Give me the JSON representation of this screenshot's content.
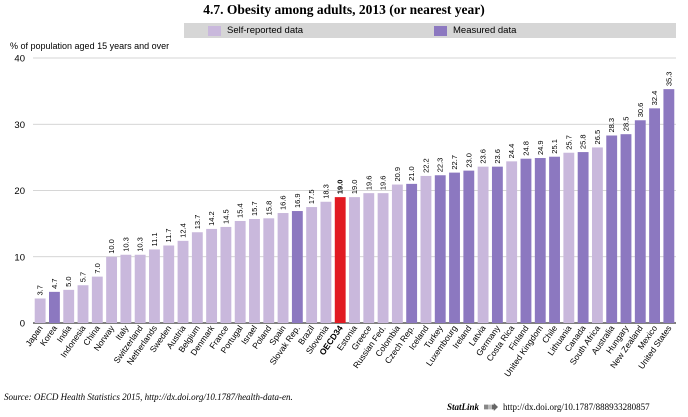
{
  "title": "4.7.  Obesity among adults, 2013 (or nearest year)",
  "y_axis_title": "% of population aged 15 years and over",
  "legend": [
    {
      "label": "Self-reported data",
      "color": "#c9b8dc"
    },
    {
      "label": "Measured data",
      "color": "#8c78c0"
    }
  ],
  "colors": {
    "self_reported": "#c9b8dc",
    "measured": "#8c78c0",
    "oecd": "#e11a22",
    "legend_band": "#d6d6d6"
  },
  "source": "Source:  OECD Health Statistics 2015, http://dx.doi.org/10.1787/health-data-en.",
  "statlink": {
    "brand": "StatLink",
    "url": "http://dx.doi.org/10.1787/888933280857"
  },
  "chart_data": {
    "type": "bar",
    "ylim": [
      0,
      40
    ],
    "yticks": [
      0,
      10,
      20,
      30,
      40
    ],
    "grid": true,
    "categories": [
      "Japan",
      "Korea",
      "India",
      "Indonesia",
      "China",
      "Norway",
      "Italy",
      "Switzerland",
      "Netherlands",
      "Sweden",
      "Austria",
      "Belgium",
      "Denmark",
      "France",
      "Portugal",
      "Israel",
      "Poland",
      "Spain",
      "Slovak Rep.",
      "Brazil",
      "Slovenia",
      "OECD34",
      "Estonia",
      "Greece",
      "Russian Fed.",
      "Colombia",
      "Czech Rep.",
      "Iceland",
      "Turkey",
      "Luxembourg",
      "Ireland",
      "Latvia",
      "Germany",
      "Costa Rica",
      "Finland",
      "United Kingdom",
      "Chile",
      "Lithuania",
      "Canada",
      "South Africa",
      "Australia",
      "Hungary",
      "New Zealand",
      "Mexico",
      "United States"
    ],
    "values": [
      3.7,
      4.7,
      5.0,
      5.7,
      7.0,
      10.0,
      10.3,
      10.3,
      11.1,
      11.7,
      12.4,
      13.7,
      14.2,
      14.5,
      15.4,
      15.7,
      15.8,
      16.6,
      16.9,
      17.5,
      18.3,
      19.0,
      19.0,
      19.6,
      19.6,
      20.9,
      21.0,
      22.2,
      22.3,
      22.7,
      23.0,
      23.6,
      23.6,
      24.4,
      24.8,
      24.9,
      25.1,
      25.7,
      25.8,
      26.5,
      28.3,
      28.5,
      30.6,
      32.4,
      35.3
    ],
    "value_labels": [
      "3.7",
      "4.7",
      "5.0",
      "5.7",
      "7.0",
      "10.0",
      "10.3",
      "10.3",
      "11.1",
      "11.7",
      "12.4",
      "13.7",
      "14.2",
      "14.5",
      "15.4",
      "15.7",
      "15.8",
      "16.6",
      "16.9",
      "17.5",
      "18.3",
      "19.0",
      "19.0",
      "19.6",
      "19.6",
      "20.9",
      "21.0",
      "22.2",
      "22.3",
      "22.7",
      "23.0",
      "23.6",
      "23.6",
      "24.4",
      "24.8",
      "24.9",
      "25.1",
      "25.7",
      "25.8",
      "26.5",
      "28.3",
      "28.5",
      "30.6",
      "32.4",
      "35.3"
    ],
    "data_type": [
      "s",
      "m",
      "s",
      "s",
      "s",
      "s",
      "s",
      "s",
      "s",
      "s",
      "s",
      "s",
      "s",
      "s",
      "s",
      "s",
      "s",
      "s",
      "m",
      "s",
      "s",
      "oecd",
      "s",
      "s",
      "s",
      "s",
      "m",
      "s",
      "m",
      "m",
      "m",
      "s",
      "m",
      "s",
      "m",
      "m",
      "m",
      "s",
      "m",
      "s",
      "m",
      "m",
      "m",
      "m",
      "m"
    ]
  }
}
